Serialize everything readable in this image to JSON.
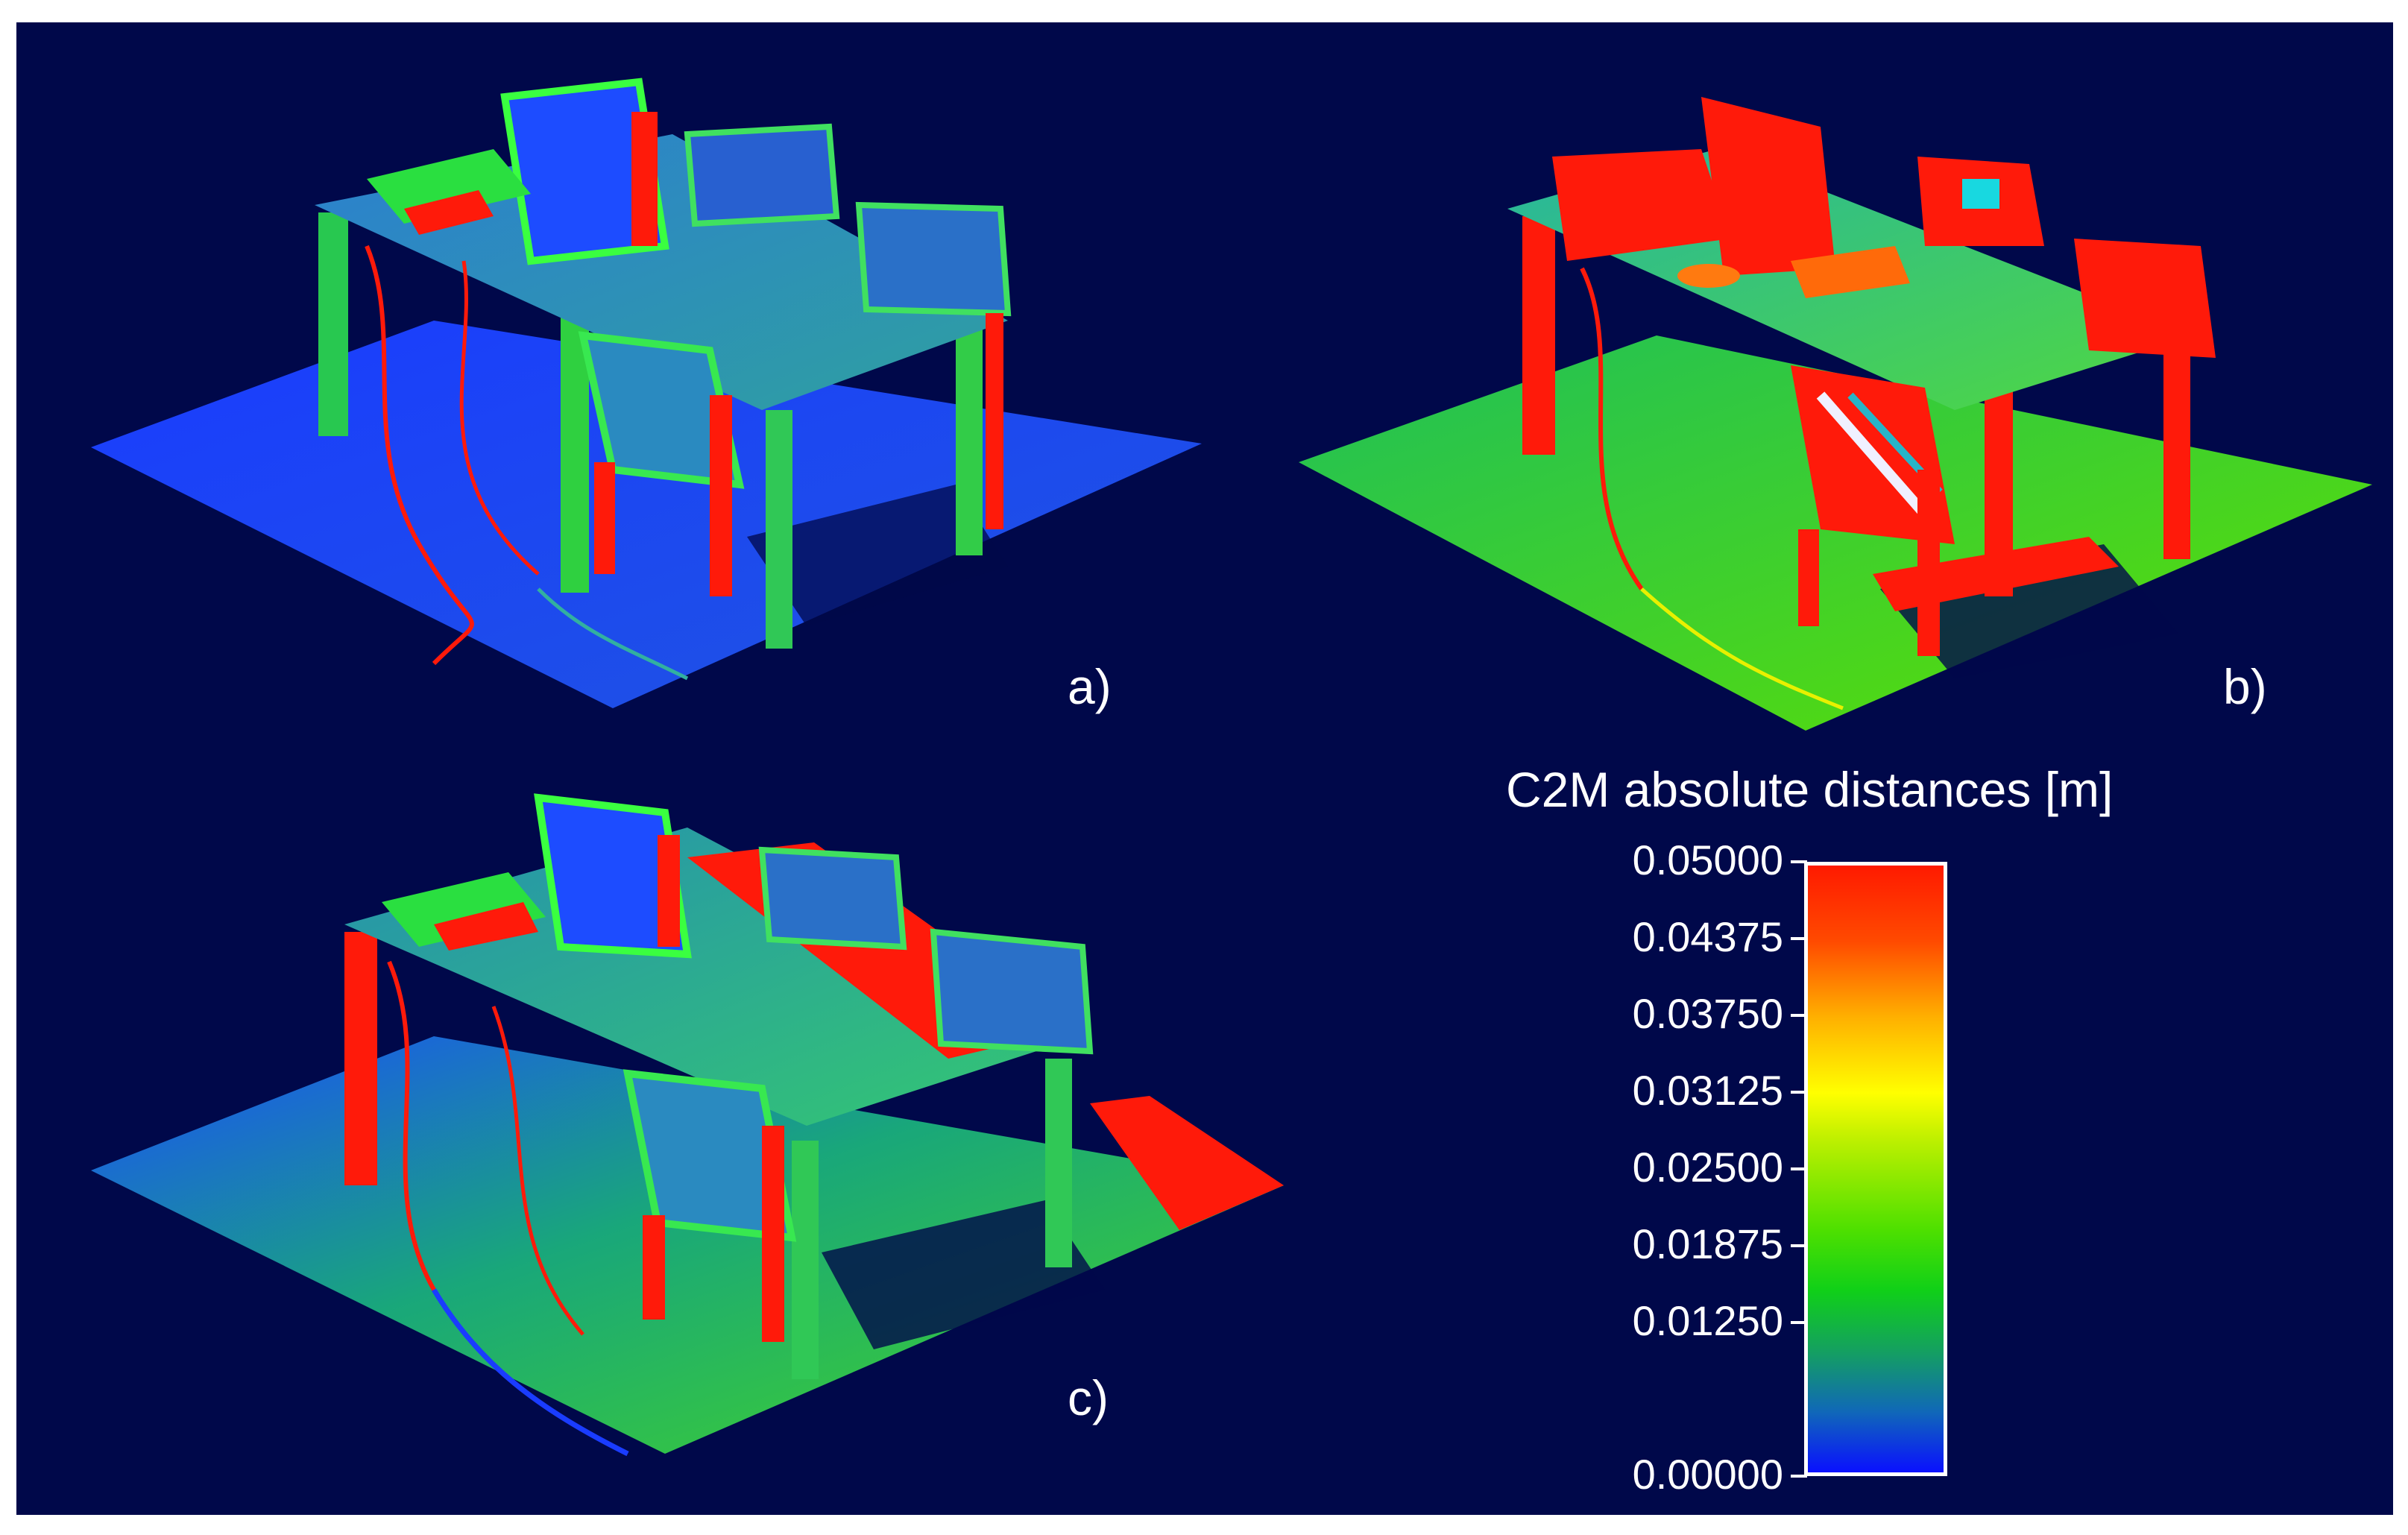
{
  "panels": {
    "a": {
      "label": "a)"
    },
    "b": {
      "label": "b)"
    },
    "c": {
      "label": "c)"
    }
  },
  "legend": {
    "title": "C2M absolute distances [m]",
    "ticks": [
      {
        "value": 0.05,
        "label": "0.05000"
      },
      {
        "value": 0.04375,
        "label": "0.04375"
      },
      {
        "value": 0.0375,
        "label": "0.03750"
      },
      {
        "value": 0.03125,
        "label": "0.03125"
      },
      {
        "value": 0.025,
        "label": "0.02500"
      },
      {
        "value": 0.01875,
        "label": "0.01875"
      },
      {
        "value": 0.0125,
        "label": "0.01250"
      },
      {
        "value": 0.0,
        "label": "0.00000"
      }
    ],
    "range": [
      0.0,
      0.05
    ],
    "colors": {
      "low": "#0a10ff",
      "mid": "#10d018",
      "midHigh": "#ffff00",
      "high": "#ff1a00"
    }
  },
  "colors": {
    "background": "#00084a",
    "blue": "#1a3cff",
    "green": "#2ad63a",
    "red": "#ff1a0a",
    "yellow": "#e8f000",
    "cyan": "#27b5c8"
  }
}
